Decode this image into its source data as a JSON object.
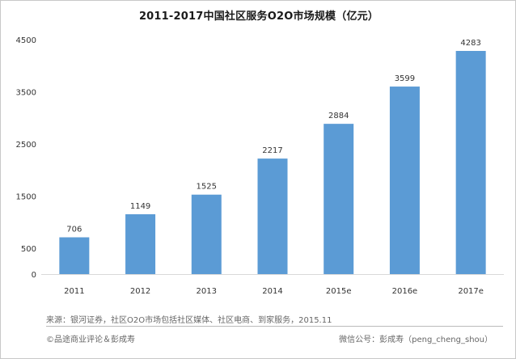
{
  "chart_data": {
    "type": "bar",
    "title": "2011-2017中国社区服务O2O市场规模（亿元）",
    "xlabel": "",
    "ylabel": "",
    "categories": [
      "2011",
      "2012",
      "2013",
      "2014",
      "2015e",
      "2016e",
      "2017e"
    ],
    "values": [
      706,
      1149,
      1525,
      2217,
      2884,
      3599,
      4283
    ],
    "series": [
      {
        "values": [
          706,
          1149,
          1525,
          2217,
          2884,
          3599,
          4283
        ]
      }
    ],
    "yticks": [
      0,
      500,
      1500,
      2500,
      3500,
      4500
    ],
    "ylim": [
      0,
      4500
    ],
    "grid": false,
    "legend": "none",
    "bar_color": "#5b9bd5"
  },
  "footer": {
    "source": "来源：银河证券，社区O2O市场包括社区媒体、社区电商、到家服务，2015.11",
    "copyright": "©品途商业评论＆彭成寿",
    "wechat": "微信公号：彭成寿（peng_cheng_shou）"
  }
}
